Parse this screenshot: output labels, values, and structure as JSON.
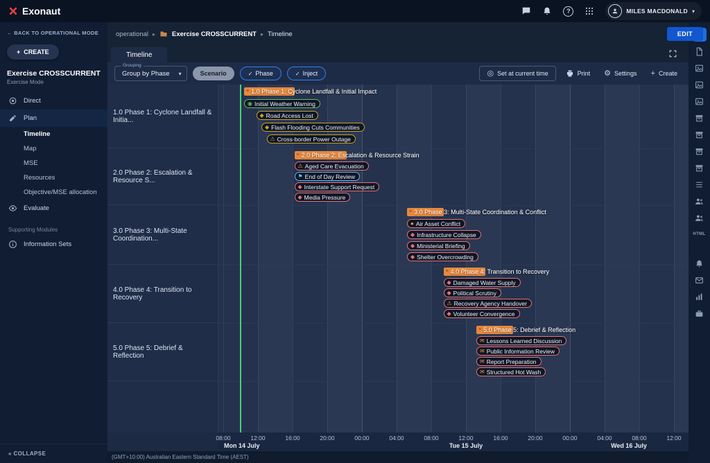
{
  "icons": {
    "chevron_down": "▾",
    "back_arrow": "←",
    "collapse": "«",
    "plus": "+",
    "separator": "▸",
    "target": "◎",
    "gear": "⚙",
    "check": "✓",
    "question": "?"
  },
  "colors": {
    "green": "#66bb6a",
    "yellow": "#c9a227",
    "red": "#e57373",
    "orange": "#ef9a3d",
    "blue": "#64b5f6",
    "phase_bar": "#e7883c",
    "current_time_line": "#43d17a",
    "accent_blue": "#2f80ed"
  },
  "topbar": {
    "logo_text": "Exonaut",
    "user_name": "MILES MACDONALD"
  },
  "sidebar": {
    "back_label": "BACK TO OPERATIONAL MODE",
    "create_label": "CREATE",
    "exercise_name": "Exercise CROSSCURRENT",
    "exercise_mode": "Exercise Mode",
    "menu": [
      {
        "label": "Direct",
        "icon": "target-icon",
        "type": "item"
      },
      {
        "label": "Plan",
        "icon": "plan-icon",
        "type": "item",
        "active": true
      },
      {
        "label": "Timeline",
        "type": "sub",
        "active": true
      },
      {
        "label": "Map",
        "type": "sub"
      },
      {
        "label": "MSE",
        "type": "sub"
      },
      {
        "label": "Resources",
        "type": "sub"
      },
      {
        "label": "Objective/MSE allocation",
        "type": "sub"
      },
      {
        "label": "Evaluate",
        "icon": "eye-icon",
        "type": "item"
      },
      {
        "label": "Supporting Modules",
        "type": "section"
      },
      {
        "label": "Information Sets",
        "icon": "info-icon",
        "type": "item"
      }
    ],
    "collapse_label": "COLLAPSE"
  },
  "breadcrumb": {
    "root": "operational",
    "exercise": "Exercise CROSSCURRENT",
    "page": "Timeline"
  },
  "edit_label": "EDIT",
  "tab_label": "Timeline",
  "toolbar": {
    "grouping_label": "Grouping",
    "grouping_value": "Group by Phase",
    "scenario_chip": "Scenario",
    "phase_chip": "Phase",
    "inject_chip": "Inject",
    "set_current_label": "Set at current time",
    "print_label": "Print",
    "settings_label": "Settings",
    "create_label": "Create"
  },
  "right_rail": {
    "active_index": 0,
    "icons": [
      "filter-icon",
      "file-icon",
      "image-icon",
      "image-icon",
      "image-icon",
      "archive-icon",
      "archive-icon",
      "archive-icon",
      "archive-icon",
      "list-icon",
      "users-icon",
      "users-icon",
      "html-icon",
      "bell-icon",
      "mail-icon",
      "chart-icon",
      "briefcase-icon"
    ]
  },
  "chart_data": {
    "type": "gantt-timeline",
    "timezone_note": "(GMT+10:00) Australian Eastern Standard Time (AEST)",
    "axis_times": [
      "08:00",
      "12:00",
      "16:00",
      "20:00",
      "00:00",
      "04:00",
      "08:00",
      "12:00",
      "16:00",
      "20:00",
      "00:00",
      "04:00",
      "08:00",
      "12:00"
    ],
    "days": [
      "Mon 14 July",
      "Tue 15 July",
      "Wed 16 July"
    ],
    "current_time_h": 1.9,
    "phases": [
      {
        "row_label": "1.0 Phase 1: Cyclone Landfall & Initia...",
        "bar": {
          "label": "1.0 Phase 1: Cyclone Landfall & Initial Impact",
          "start_h": 2.4,
          "duration_h": 5.8
        },
        "injects": [
          {
            "label": "Initial Weather Warning",
            "start_h": 2.4,
            "color": "green",
            "icon": "info-circle-icon"
          },
          {
            "label": "Road Access Lost",
            "start_h": 3.8,
            "color": "yellow",
            "icon": "warning-diamond-icon"
          },
          {
            "label": "Flash Flooding Cuts Communities",
            "start_h": 4.4,
            "color": "yellow",
            "icon": "warning-diamond-icon"
          },
          {
            "label": "Cross-border Power Outage",
            "start_h": 5.0,
            "color": "yellow",
            "icon": "warning-triangle-icon"
          }
        ]
      },
      {
        "row_label": "2.0 Phase 2: Escalation & Resource S...",
        "bar": {
          "label": "2.0 Phase 2: Escalation & Resource Strain",
          "start_h": 8.2,
          "duration_h": 6.0
        },
        "injects": [
          {
            "label": "Aged Care Evacuation",
            "start_h": 8.2,
            "color": "red",
            "icon": "warning-triangle-icon",
            "icon_color": "orange"
          },
          {
            "label": "End of Day Review",
            "start_h": 8.2,
            "color": "blue",
            "icon": "flag-icon"
          },
          {
            "label": "Interstate Support Request",
            "start_h": 8.2,
            "color": "red",
            "icon": "warning-diamond-icon"
          },
          {
            "label": "Media Pressure",
            "start_h": 8.2,
            "color": "red",
            "icon": "warning-diamond-icon"
          }
        ]
      },
      {
        "row_label": "3.0 Phase 3: Multi-State Coordination...",
        "bar": {
          "label": "3.0 Phase 3: Multi-State Coordination & Conflict",
          "start_h": 21.2,
          "duration_h": 4.2
        },
        "injects": [
          {
            "label": "Air Asset Conflict",
            "start_h": 21.2,
            "color": "red",
            "icon": "clock-icon",
            "icon_color": "orange"
          },
          {
            "label": "Infrastructure Collapse",
            "start_h": 21.2,
            "color": "red",
            "icon": "warning-diamond-icon"
          },
          {
            "label": "Ministerial Briefing",
            "start_h": 21.2,
            "color": "red",
            "icon": "warning-diamond-icon"
          },
          {
            "label": "Shelter Overcrowding",
            "start_h": 21.2,
            "color": "red",
            "icon": "warning-diamond-icon"
          }
        ]
      },
      {
        "row_label": "4.0 Phase 4: Transition to Recovery",
        "bar": {
          "label": "4.0 Phase 4: Transition to Recovery",
          "start_h": 25.4,
          "duration_h": 4.8
        },
        "injects": [
          {
            "label": "Damaged Water Supply",
            "start_h": 25.4,
            "color": "red",
            "icon": "warning-diamond-icon"
          },
          {
            "label": "Political Scrutiny",
            "start_h": 25.4,
            "color": "red",
            "icon": "warning-diamond-icon"
          },
          {
            "label": "Recovery Agency Handover",
            "start_h": 25.4,
            "color": "red",
            "icon": "warning-triangle-icon",
            "icon_color": "orange"
          },
          {
            "label": "Volunteer Convergence",
            "start_h": 25.4,
            "color": "red",
            "icon": "warning-diamond-icon"
          }
        ]
      },
      {
        "row_label": "5.0 Phase 5: Debrief & Reflection",
        "bar": {
          "label": "5.0 Phase 5: Debrief & Reflection",
          "start_h": 29.2,
          "duration_h": 4.2
        },
        "injects": [
          {
            "label": "Lessons Learned Discussion",
            "start_h": 29.2,
            "color": "red",
            "icon": "mail-icon",
            "icon_color": "orange"
          },
          {
            "label": "Public Information Review",
            "start_h": 29.2,
            "color": "red",
            "icon": "mail-icon",
            "icon_color": "orange"
          },
          {
            "label": "Report Preparation",
            "start_h": 29.2,
            "color": "red",
            "icon": "mail-icon",
            "icon_color": "orange"
          },
          {
            "label": "Structured Hot Wash",
            "start_h": 29.2,
            "color": "red",
            "icon": "mail-icon",
            "icon_color": "orange"
          }
        ]
      }
    ]
  }
}
